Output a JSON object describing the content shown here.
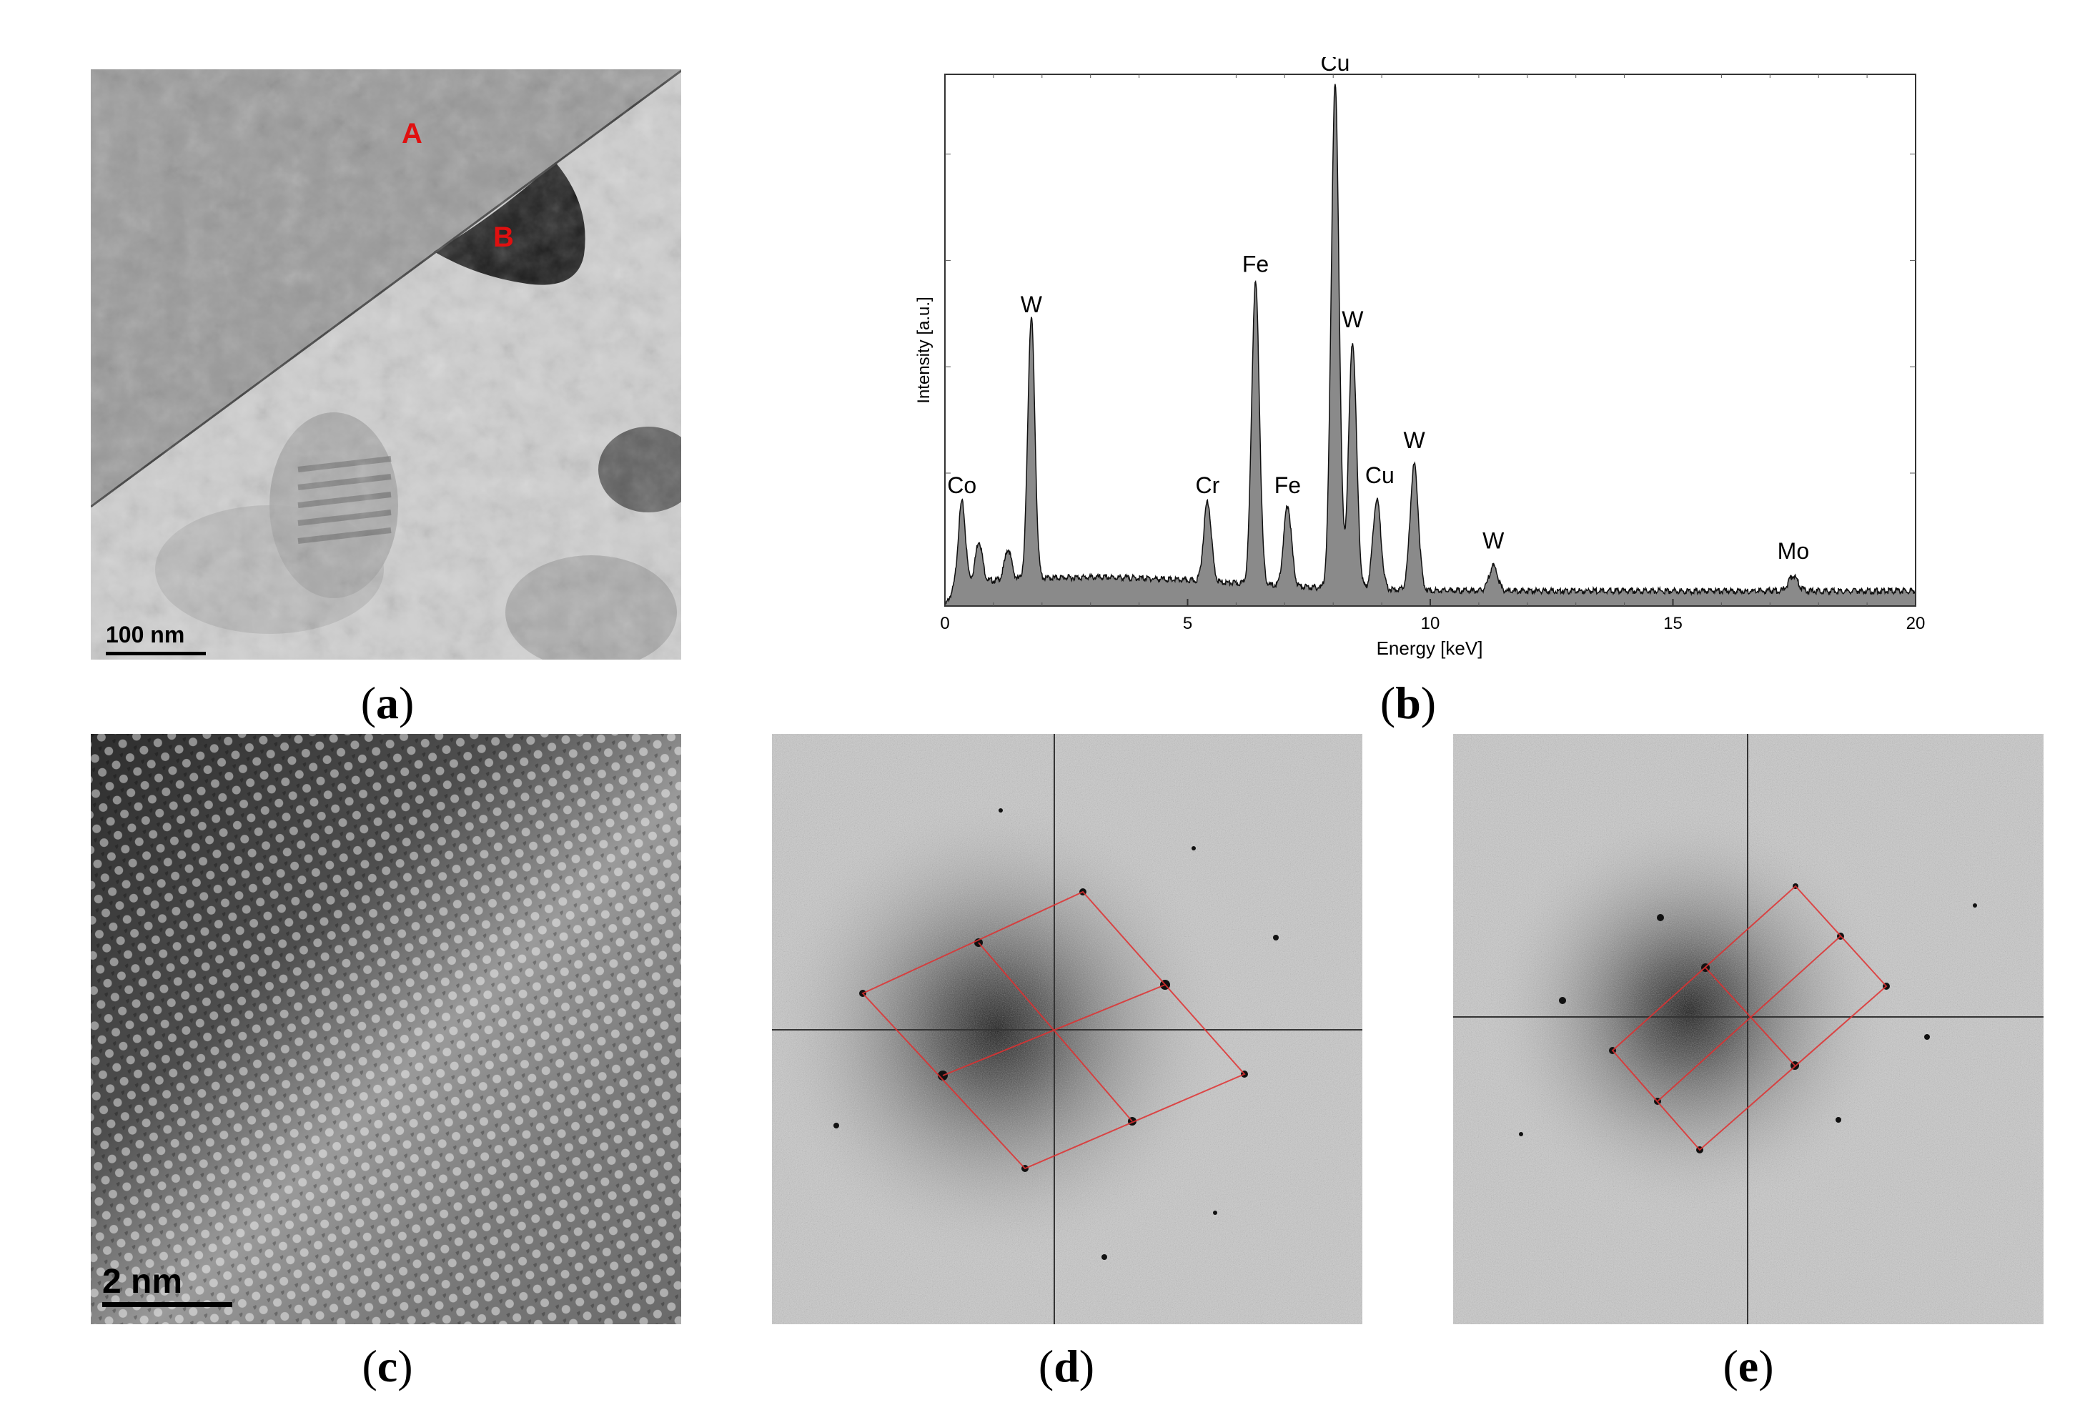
{
  "figure": {
    "panel_a": {
      "caption": "a",
      "markers": [
        "A",
        "B"
      ],
      "scale_bar": "100 nm"
    },
    "panel_b": {
      "caption": "b"
    },
    "panel_c": {
      "caption": "c",
      "scale_bar": "2 nm"
    },
    "panel_d": {
      "caption": "d"
    },
    "panel_e": {
      "caption": "e"
    }
  },
  "chart_data": {
    "type": "line",
    "title": "",
    "xlabel": "Energy [keV]",
    "ylabel": "Intensity [a.u.]",
    "xlim": [
      0,
      20
    ],
    "ylim": [
      0,
      100
    ],
    "x_ticks": [
      0,
      5,
      10,
      15,
      20
    ],
    "fill_color": "#8a8a8a",
    "baseline": 3,
    "peaks": [
      {
        "label": "Co",
        "energy": 0.35,
        "intensity": 16
      },
      {
        "label": "",
        "energy": 0.7,
        "intensity": 8
      },
      {
        "label": "",
        "energy": 1.3,
        "intensity": 6
      },
      {
        "label": "W",
        "energy": 1.78,
        "intensity": 52
      },
      {
        "label": "Cr",
        "energy": 5.41,
        "intensity": 16
      },
      {
        "label": "Fe",
        "energy": 6.4,
        "intensity": 60
      },
      {
        "label": "Fe",
        "energy": 7.06,
        "intensity": 16
      },
      {
        "label": "Cu",
        "energy": 8.04,
        "intensity": 100
      },
      {
        "label": "W",
        "energy": 8.4,
        "intensity": 49
      },
      {
        "label": "Cu",
        "energy": 8.9,
        "intensity": 18
      },
      {
        "label": "W",
        "energy": 9.67,
        "intensity": 25
      },
      {
        "label": "W",
        "energy": 11.3,
        "intensity": 5
      },
      {
        "label": "Mo",
        "energy": 17.48,
        "intensity": 3
      }
    ]
  }
}
